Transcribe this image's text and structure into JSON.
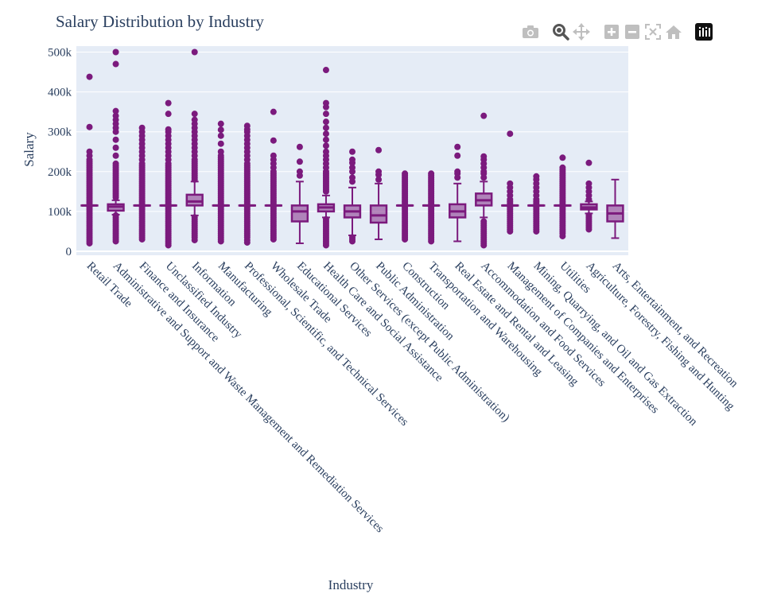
{
  "title": "Salary Distribution by Industry",
  "colors": {
    "box": "#7b1a7d",
    "box_fill": "rgba(123,26,125,0.5)",
    "plot_bg": "#e5ecf6",
    "grid": "#ffffff",
    "text": "#2a3f5f",
    "modebar_icon": "#bfbfbf",
    "modebar_active": "#555555"
  },
  "modebar": {
    "buttons": [
      "camera-icon",
      "zoom-icon",
      "pan-icon",
      "zoom-in-icon",
      "zoom-out-icon",
      "autoscale-icon",
      "reset-axes-icon",
      "plotly-logo-icon"
    ]
  },
  "chart_data": {
    "type": "box",
    "title": "Salary Distribution by Industry",
    "xlabel": "Industry",
    "ylabel": "Salary",
    "ylim": [
      -10000,
      515000
    ],
    "yticks": [
      0,
      100000,
      200000,
      300000,
      400000,
      500000
    ],
    "ytick_labels": [
      "0",
      "100k",
      "200k",
      "300k",
      "400k",
      "500k"
    ],
    "grid": true,
    "legend": "none",
    "categories": [
      "Retail Trade",
      "Administrative and Support and Waste Management and Remediation Services",
      "Finance and Insurance",
      "Unclassified Industry",
      "Information",
      "Manufacturing",
      "Professional, Scientific, and Technical Services",
      "Wholesale Trade",
      "Educational Services",
      "Health Care and Social Assistance",
      "Other Services (except Public Administration)",
      "Public Administration",
      "Construction",
      "Transportation and Warehousing",
      "Real Estate and Rental and Leasing",
      "Accommodation and Food Services",
      "Management of Companies and Enterprises",
      "Mining, Quarrying, and Oil and Gas Extraction",
      "Utilities",
      "Agriculture, Forestry, Fishing and Hunting",
      "Arts, Entertainment, and Recreation"
    ],
    "boxes": [
      {
        "q1": 115000,
        "median": 115000,
        "q3": 115000,
        "lf": 115000,
        "uf": 115000,
        "outliers": [
          20000,
          25000,
          30000,
          35000,
          40000,
          45000,
          50000,
          55000,
          60000,
          65000,
          70000,
          75000,
          80000,
          85000,
          90000,
          95000,
          100000,
          105000,
          110000,
          120000,
          125000,
          130000,
          135000,
          140000,
          145000,
          150000,
          155000,
          160000,
          165000,
          170000,
          175000,
          180000,
          185000,
          190000,
          195000,
          200000,
          205000,
          210000,
          215000,
          220000,
          225000,
          230000,
          240000,
          250000,
          312000,
          438000
        ]
      },
      {
        "q1": 102000,
        "median": 112000,
        "q3": 118000,
        "lf": 92000,
        "uf": 128000,
        "outliers": [
          25000,
          30000,
          35000,
          40000,
          45000,
          50000,
          55000,
          60000,
          65000,
          70000,
          75000,
          80000,
          85000,
          90000,
          135000,
          140000,
          145000,
          150000,
          155000,
          160000,
          165000,
          170000,
          175000,
          180000,
          185000,
          190000,
          195000,
          200000,
          205000,
          210000,
          215000,
          220000,
          240000,
          260000,
          280000,
          300000,
          310000,
          320000,
          330000,
          340000,
          352000,
          470000,
          500000
        ]
      },
      {
        "q1": 115000,
        "median": 115000,
        "q3": 115000,
        "lf": 115000,
        "uf": 115000,
        "outliers": [
          30000,
          35000,
          40000,
          45000,
          50000,
          55000,
          60000,
          65000,
          70000,
          75000,
          80000,
          85000,
          90000,
          95000,
          100000,
          105000,
          110000,
          120000,
          125000,
          130000,
          135000,
          140000,
          145000,
          150000,
          155000,
          160000,
          165000,
          170000,
          175000,
          180000,
          185000,
          190000,
          195000,
          200000,
          205000,
          210000,
          215000,
          220000,
          230000,
          240000,
          250000,
          260000,
          270000,
          280000,
          290000,
          300000,
          310000
        ]
      },
      {
        "q1": 115000,
        "median": 115000,
        "q3": 115000,
        "lf": 115000,
        "uf": 115000,
        "outliers": [
          15000,
          20000,
          25000,
          30000,
          35000,
          40000,
          45000,
          50000,
          55000,
          60000,
          65000,
          70000,
          75000,
          80000,
          85000,
          90000,
          95000,
          100000,
          105000,
          110000,
          120000,
          125000,
          130000,
          135000,
          140000,
          145000,
          150000,
          155000,
          160000,
          165000,
          170000,
          175000,
          180000,
          185000,
          190000,
          195000,
          200000,
          205000,
          210000,
          215000,
          220000,
          230000,
          240000,
          250000,
          260000,
          270000,
          280000,
          290000,
          300000,
          306000,
          345000,
          372000
        ]
      },
      {
        "q1": 115000,
        "median": 125000,
        "q3": 142000,
        "lf": 90000,
        "uf": 175000,
        "outliers": [
          28000,
          35000,
          40000,
          45000,
          50000,
          55000,
          60000,
          65000,
          70000,
          75000,
          80000,
          85000,
          180000,
          185000,
          190000,
          195000,
          200000,
          205000,
          210000,
          215000,
          220000,
          225000,
          230000,
          240000,
          250000,
          260000,
          270000,
          280000,
          290000,
          300000,
          310000,
          320000,
          330000,
          345000,
          500000
        ]
      },
      {
        "q1": 115000,
        "median": 115000,
        "q3": 115000,
        "lf": 115000,
        "uf": 115000,
        "outliers": [
          25000,
          30000,
          35000,
          40000,
          45000,
          50000,
          55000,
          60000,
          65000,
          70000,
          75000,
          80000,
          85000,
          90000,
          95000,
          100000,
          105000,
          110000,
          120000,
          125000,
          130000,
          135000,
          140000,
          145000,
          150000,
          155000,
          160000,
          165000,
          170000,
          175000,
          180000,
          185000,
          190000,
          195000,
          200000,
          205000,
          210000,
          215000,
          220000,
          225000,
          230000,
          235000,
          240000,
          250000,
          270000,
          290000,
          305000,
          320000
        ]
      },
      {
        "q1": 115000,
        "median": 115000,
        "q3": 115000,
        "lf": 115000,
        "uf": 115000,
        "outliers": [
          22000,
          28000,
          35000,
          40000,
          45000,
          50000,
          55000,
          60000,
          65000,
          70000,
          75000,
          80000,
          85000,
          90000,
          95000,
          100000,
          105000,
          110000,
          120000,
          125000,
          130000,
          135000,
          140000,
          145000,
          150000,
          155000,
          160000,
          165000,
          170000,
          175000,
          180000,
          185000,
          190000,
          195000,
          200000,
          205000,
          210000,
          215000,
          220000,
          230000,
          240000,
          250000,
          260000,
          270000,
          280000,
          290000,
          300000,
          306000,
          315000
        ]
      },
      {
        "q1": 115000,
        "median": 115000,
        "q3": 115000,
        "lf": 115000,
        "uf": 115000,
        "outliers": [
          30000,
          35000,
          40000,
          45000,
          50000,
          55000,
          60000,
          65000,
          70000,
          75000,
          80000,
          85000,
          90000,
          95000,
          100000,
          105000,
          110000,
          120000,
          125000,
          130000,
          135000,
          140000,
          145000,
          150000,
          155000,
          160000,
          165000,
          170000,
          175000,
          180000,
          185000,
          190000,
          195000,
          200000,
          210000,
          220000,
          230000,
          240000,
          278000,
          350000
        ]
      },
      {
        "q1": 75000,
        "median": 100000,
        "q3": 115000,
        "lf": 20000,
        "uf": 175000,
        "outliers": [
          190000,
          200000,
          225000,
          262000
        ]
      },
      {
        "q1": 100000,
        "median": 110000,
        "q3": 118000,
        "lf": 85000,
        "uf": 140000,
        "outliers": [
          15000,
          20000,
          25000,
          30000,
          35000,
          40000,
          45000,
          50000,
          55000,
          60000,
          65000,
          70000,
          75000,
          80000,
          150000,
          155000,
          160000,
          165000,
          170000,
          175000,
          180000,
          185000,
          190000,
          195000,
          200000,
          210000,
          220000,
          230000,
          240000,
          250000,
          265000,
          280000,
          295000,
          310000,
          325000,
          345000,
          362000,
          372000,
          455000
        ]
      },
      {
        "q1": 85000,
        "median": 100000,
        "q3": 115000,
        "lf": 40000,
        "uf": 160000,
        "outliers": [
          25000,
          30000,
          35000,
          175000,
          185000,
          200000,
          210000,
          222000,
          230000,
          250000
        ]
      },
      {
        "q1": 72000,
        "median": 90000,
        "q3": 115000,
        "lf": 30000,
        "uf": 170000,
        "outliers": [
          180000,
          192000,
          200000,
          254000
        ]
      },
      {
        "q1": 115000,
        "median": 115000,
        "q3": 115000,
        "lf": 115000,
        "uf": 115000,
        "outliers": [
          30000,
          35000,
          40000,
          45000,
          50000,
          55000,
          60000,
          65000,
          70000,
          75000,
          80000,
          85000,
          90000,
          95000,
          100000,
          105000,
          110000,
          120000,
          125000,
          130000,
          135000,
          140000,
          145000,
          150000,
          155000,
          160000,
          165000,
          170000,
          175000,
          180000,
          185000,
          190000,
          195000
        ]
      },
      {
        "q1": 115000,
        "median": 115000,
        "q3": 115000,
        "lf": 115000,
        "uf": 115000,
        "outliers": [
          25000,
          30000,
          35000,
          40000,
          45000,
          50000,
          55000,
          60000,
          65000,
          70000,
          75000,
          80000,
          85000,
          90000,
          95000,
          100000,
          105000,
          110000,
          120000,
          125000,
          130000,
          135000,
          140000,
          145000,
          150000,
          155000,
          160000,
          165000,
          170000,
          175000,
          180000,
          185000,
          190000,
          195000
        ]
      },
      {
        "q1": 85000,
        "median": 100000,
        "q3": 118000,
        "lf": 25000,
        "uf": 170000,
        "outliers": [
          185000,
          195000,
          200000,
          240000,
          262000
        ]
      },
      {
        "q1": 115000,
        "median": 128000,
        "q3": 145000,
        "lf": 85000,
        "uf": 175000,
        "outliers": [
          15000,
          20000,
          25000,
          30000,
          35000,
          40000,
          45000,
          50000,
          55000,
          60000,
          65000,
          70000,
          75000,
          185000,
          195000,
          200000,
          210000,
          220000,
          230000,
          238000,
          340000
        ]
      },
      {
        "q1": 115000,
        "median": 115000,
        "q3": 115000,
        "lf": 115000,
        "uf": 115000,
        "outliers": [
          50000,
          55000,
          60000,
          65000,
          70000,
          75000,
          80000,
          85000,
          90000,
          95000,
          100000,
          105000,
          110000,
          120000,
          125000,
          130000,
          140000,
          150000,
          160000,
          170000,
          295000
        ]
      },
      {
        "q1": 115000,
        "median": 115000,
        "q3": 115000,
        "lf": 115000,
        "uf": 115000,
        "outliers": [
          50000,
          55000,
          60000,
          65000,
          70000,
          75000,
          80000,
          85000,
          90000,
          95000,
          100000,
          105000,
          110000,
          120000,
          125000,
          130000,
          140000,
          150000,
          160000,
          170000,
          180000,
          188000
        ]
      },
      {
        "q1": 115000,
        "median": 115000,
        "q3": 115000,
        "lf": 115000,
        "uf": 115000,
        "outliers": [
          38000,
          45000,
          50000,
          55000,
          60000,
          65000,
          70000,
          75000,
          80000,
          85000,
          90000,
          95000,
          100000,
          105000,
          110000,
          120000,
          125000,
          130000,
          135000,
          140000,
          145000,
          150000,
          155000,
          160000,
          165000,
          170000,
          175000,
          180000,
          185000,
          190000,
          195000,
          200000,
          205000,
          210000,
          235000
        ]
      },
      {
        "q1": 105000,
        "median": 110000,
        "q3": 118000,
        "lf": 95000,
        "uf": 125000,
        "outliers": [
          55000,
          60000,
          65000,
          70000,
          75000,
          80000,
          85000,
          90000,
          130000,
          140000,
          150000,
          160000,
          170000,
          222000
        ]
      },
      {
        "q1": 75000,
        "median": 95000,
        "q3": 115000,
        "lf": 33000,
        "uf": 180000,
        "outliers": []
      }
    ]
  }
}
